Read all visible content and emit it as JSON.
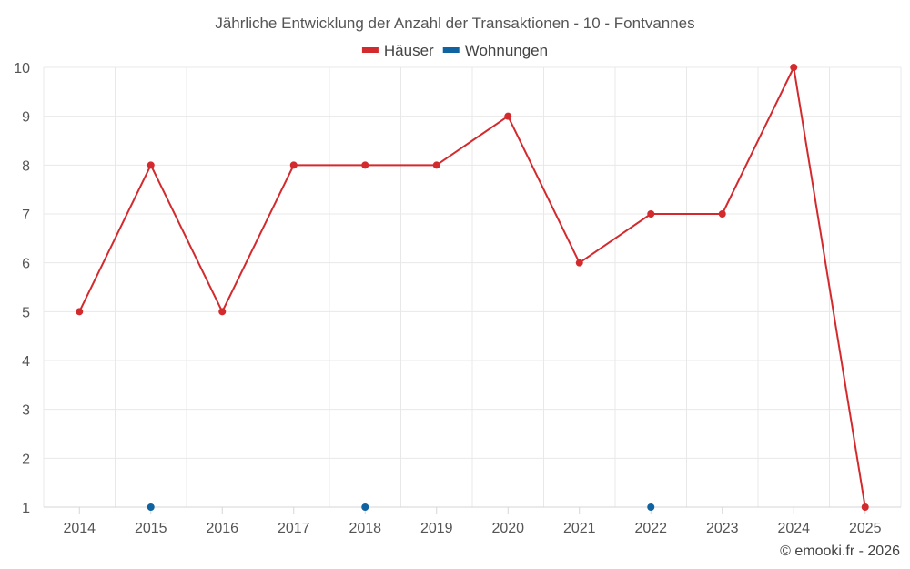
{
  "chart_data": {
    "type": "line",
    "title": "Jährliche Entwicklung der Anzahl der Transaktionen - 10 - Fontvannes",
    "categories": [
      "2014",
      "2015",
      "2016",
      "2017",
      "2018",
      "2019",
      "2020",
      "2021",
      "2022",
      "2023",
      "2024",
      "2025"
    ],
    "y_ticks": [
      "1",
      "2",
      "3",
      "4",
      "5",
      "6",
      "7",
      "8",
      "9",
      "10"
    ],
    "ylim": [
      1,
      10
    ],
    "grid": true,
    "legend_position": "top-center",
    "series": [
      {
        "name": "Häuser",
        "color": "#d32a2e",
        "line": true,
        "values": [
          5,
          8,
          5,
          8,
          8,
          8,
          9,
          6,
          7,
          7,
          10,
          1
        ]
      },
      {
        "name": "Wohnungen",
        "color": "#0f63a1",
        "line": false,
        "values": [
          null,
          1,
          null,
          null,
          1,
          null,
          null,
          null,
          1,
          null,
          null,
          null
        ]
      }
    ]
  },
  "credit": "© emooki.fr - 2026"
}
